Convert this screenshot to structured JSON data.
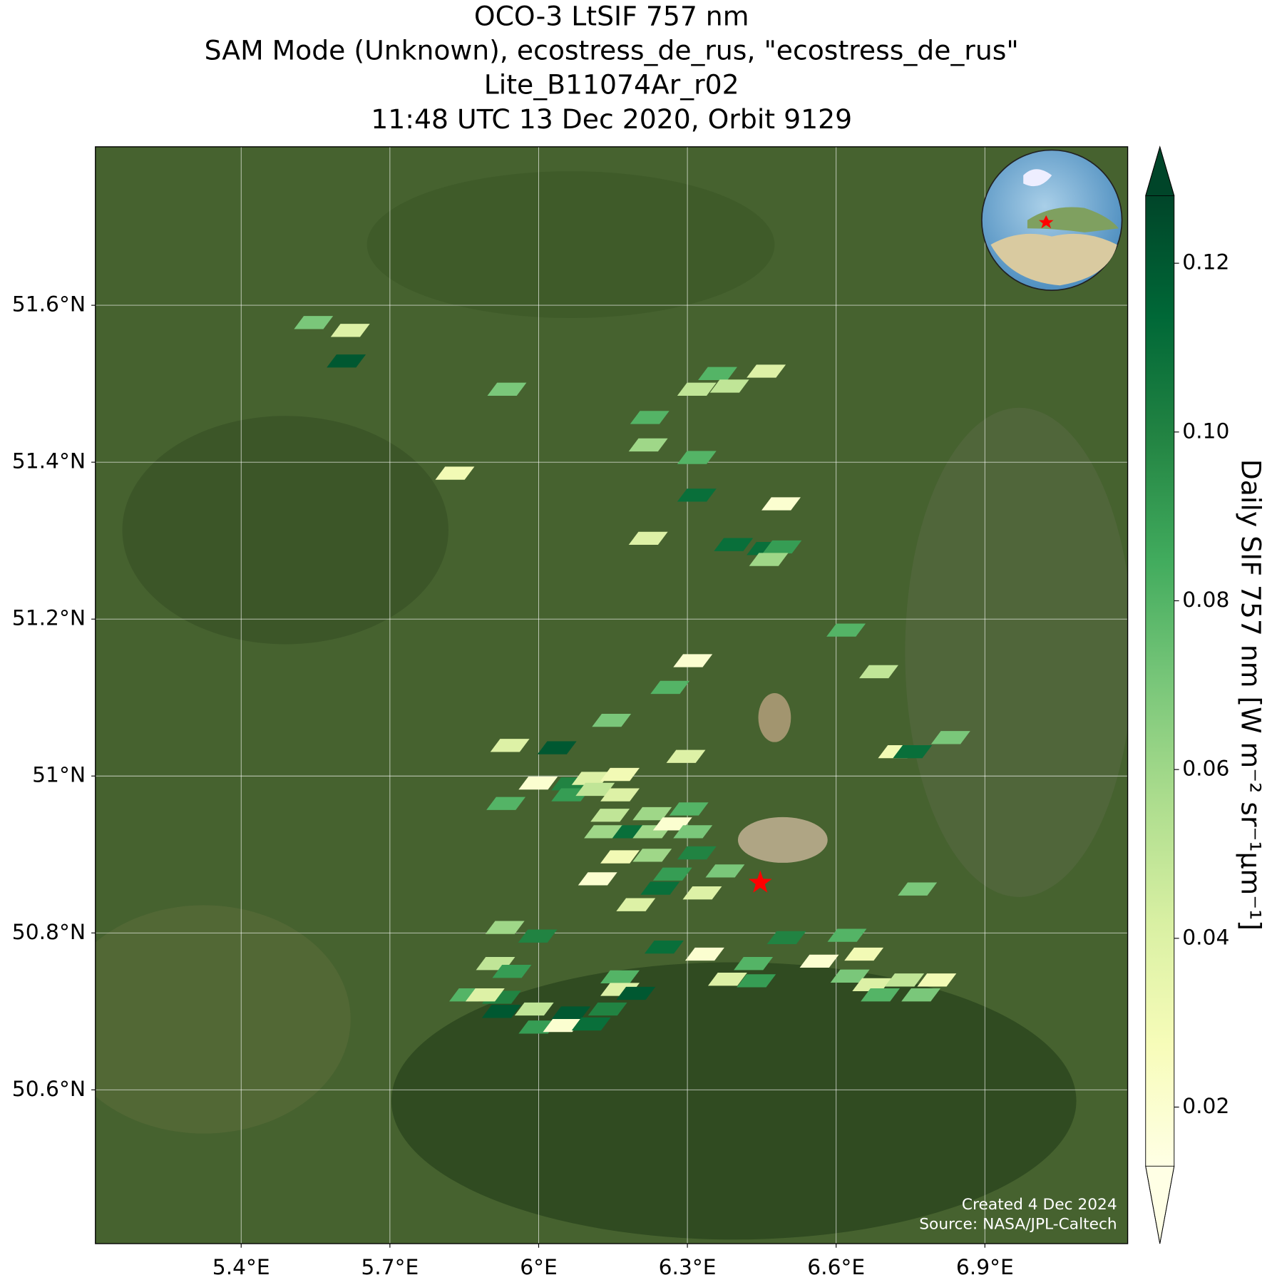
{
  "chart_data": {
    "type": "map",
    "title_lines": [
      "OCO-3 LtSIF 757 nm",
      "SAM Mode (Unknown), ecostress_de_rus, \"ecostress_de_rus\"",
      "Lite_B11074Ar_r02",
      "11:48 UTC 13 Dec 2020, Orbit 9129"
    ],
    "xlim": [
      5.106,
      7.188
    ],
    "ylim": [
      50.404,
      51.802
    ],
    "xticks": [
      {
        "value": 5.4,
        "label": "5.4°E"
      },
      {
        "value": 5.7,
        "label": "5.7°E"
      },
      {
        "value": 6,
        "label": "6°E"
      },
      {
        "value": 6.3,
        "label": "6.3°E"
      },
      {
        "value": 6.6,
        "label": "6.6°E"
      },
      {
        "value": 6.9,
        "label": "6.9°E"
      }
    ],
    "yticks": [
      {
        "value": 50.6,
        "label": "50.6°N"
      },
      {
        "value": 50.8,
        "label": "50.8°N"
      },
      {
        "value": 51,
        "label": "51°N"
      },
      {
        "value": 51.2,
        "label": "51.2°N"
      },
      {
        "value": 51.4,
        "label": "51.4°N"
      },
      {
        "value": 51.6,
        "label": "51.6°N"
      }
    ],
    "grid": true,
    "colormap": "YlGn",
    "clim": [
      0.013,
      0.128
    ],
    "cticks": [
      0.02,
      0.04,
      0.06,
      0.08,
      {
        "value": 0.1,
        "label": "0.10"
      },
      0.12
    ],
    "colorbar_label": "Daily SIF 757 nm [W m⁻² sr⁻¹µm⁻¹]",
    "target": {
      "lon": 6.447,
      "lat": 50.864,
      "color": "#ff0000"
    },
    "soundings": {
      "lon": [
        5.546,
        5.62,
        5.612,
        5.936,
        5.831,
        6.224,
        6.221,
        6.319,
        6.319,
        6.319,
        6.361,
        6.385,
        6.459,
        6.489,
        6.221,
        6.393,
        6.459,
        6.491,
        6.464,
        6.62,
        6.686,
        6.311,
        6.265,
        6.147,
        5.942,
        6.037,
        6.297,
        6.724,
        6.754,
        6.831,
        5.999,
        6.065,
        6.106,
        6.164,
        5.934,
        6.065,
        6.114,
        6.164,
        6.144,
        6.131,
        6.229,
        6.188,
        6.229,
        6.27,
        6.303,
        6.311,
        6.164,
        6.229,
        6.319,
        6.119,
        6.27,
        6.376,
        6.245,
        6.33,
        6.196,
        6.764,
        5.932,
        5.998,
        6.253,
        6.335,
        6.5,
        6.622,
        5.913,
        5.946,
        6.566,
        6.656,
        6.433,
        6.381,
        6.439,
        6.628,
        6.164,
        6.164,
        6.196,
        6.672,
        6.738,
        6.803,
        6.689,
        6.771,
        5.859,
        5.925,
        5.892,
        5.925,
        5.991,
        6.065,
        6.139,
        5.999,
        6.048,
        6.106
      ],
      "lat": [
        51.578,
        51.568,
        51.529,
        51.493,
        51.386,
        51.457,
        51.422,
        51.406,
        51.358,
        51.493,
        51.513,
        51.497,
        51.516,
        51.347,
        51.303,
        51.295,
        51.29,
        51.292,
        51.276,
        51.186,
        51.133,
        51.147,
        51.113,
        51.071,
        51.039,
        51.036,
        51.025,
        51.031,
        51.031,
        51.049,
        50.991,
        50.99,
        50.997,
        51.002,
        50.965,
        50.976,
        50.983,
        50.976,
        50.95,
        50.929,
        50.952,
        50.929,
        50.929,
        50.939,
        50.958,
        50.929,
        50.897,
        50.899,
        50.902,
        50.869,
        50.875,
        50.879,
        50.857,
        50.851,
        50.836,
        50.856,
        50.807,
        50.796,
        50.782,
        50.773,
        50.794,
        50.797,
        50.761,
        50.751,
        50.764,
        50.773,
        50.761,
        50.741,
        50.739,
        50.745,
        50.744,
        50.728,
        50.723,
        50.734,
        50.74,
        50.74,
        50.721,
        50.721,
        50.721,
        50.718,
        50.721,
        50.7,
        50.703,
        50.698,
        50.703,
        50.68,
        50.682,
        50.684
      ],
      "sif": [
        0.07,
        0.04,
        0.12,
        0.07,
        0.03,
        0.08,
        0.06,
        0.08,
        0.11,
        0.05,
        0.08,
        0.05,
        0.04,
        0.02,
        0.04,
        0.11,
        0.11,
        0.09,
        0.06,
        0.08,
        0.05,
        0.02,
        0.08,
        0.07,
        0.04,
        0.12,
        0.04,
        0.03,
        0.11,
        0.07,
        0.02,
        0.1,
        0.04,
        0.03,
        0.08,
        0.09,
        0.05,
        0.04,
        0.05,
        0.06,
        0.06,
        0.11,
        0.06,
        0.02,
        0.08,
        0.07,
        0.03,
        0.06,
        0.1,
        0.02,
        0.09,
        0.07,
        0.11,
        0.04,
        0.04,
        0.07,
        0.06,
        0.1,
        0.11,
        0.02,
        0.1,
        0.08,
        0.05,
        0.09,
        0.02,
        0.03,
        0.08,
        0.04,
        0.09,
        0.07,
        0.08,
        0.04,
        0.12,
        0.04,
        0.05,
        0.03,
        0.08,
        0.07,
        0.08,
        0.1,
        0.04,
        0.12,
        0.05,
        0.12,
        0.1,
        0.09,
        0.02,
        0.11
      ]
    },
    "credits": [
      "Created 4 Dec 2024",
      "Source: NASA/JPL-Caltech"
    ]
  }
}
